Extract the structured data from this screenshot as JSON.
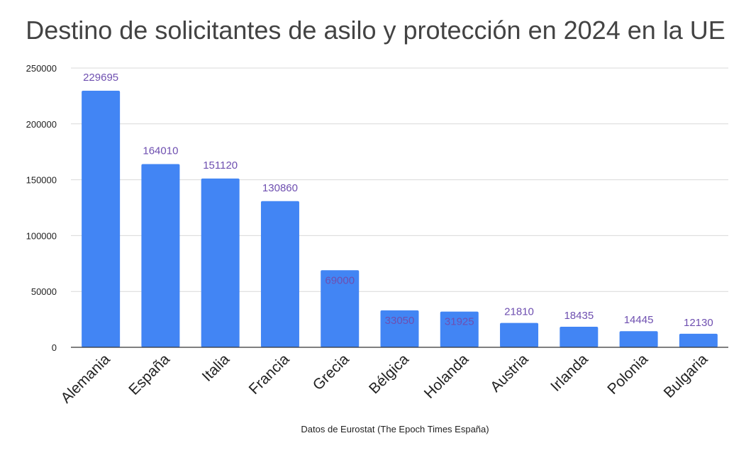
{
  "chart_data": {
    "type": "bar",
    "title": "Destino de solicitantes de asilo y protección en 2024 en la UE",
    "xlabel": "Datos de Eurostat (The Epoch Times España)",
    "ylabel": "",
    "categories": [
      "Alemania",
      "España",
      "Italia",
      "Francia",
      "Grecia",
      "Bélgica",
      "Holanda",
      "Austria",
      "Irlanda",
      "Polonia",
      "Bulgaria"
    ],
    "values": [
      229695,
      164010,
      151120,
      130860,
      69000,
      33050,
      31925,
      21810,
      18435,
      14445,
      12130
    ],
    "ylim": [
      0,
      250000
    ],
    "yticks": [
      0,
      50000,
      100000,
      150000,
      200000,
      250000
    ],
    "grid": true,
    "legend": "none",
    "colors": {
      "bar": "#4285f4",
      "label": "#6e4fb0",
      "grid": "#d9d9d9",
      "axis": "#333333",
      "tick_text": "#222222",
      "title": "#434343"
    }
  }
}
